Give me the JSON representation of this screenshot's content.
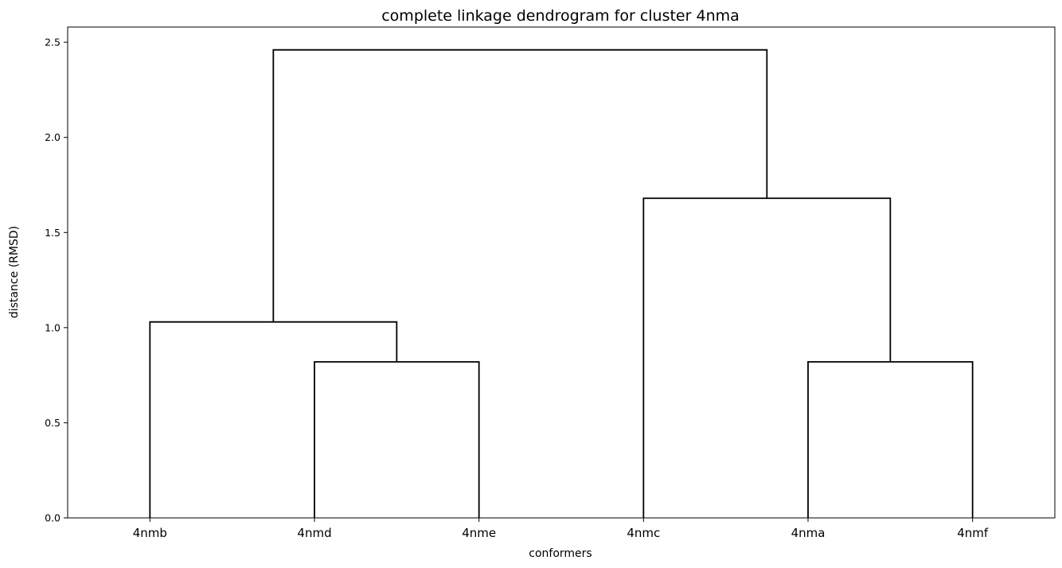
{
  "chart_data": {
    "type": "dendrogram",
    "title": "complete linkage dendrogram for cluster 4nma",
    "xlabel": "conformers",
    "ylabel": "distance (RMSD)",
    "leaves": [
      "4nmb",
      "4nmd",
      "4nme",
      "4nmc",
      "4nma",
      "4nmf"
    ],
    "yticks": [
      0.0,
      0.5,
      1.0,
      1.5,
      2.0,
      2.5
    ],
    "ytick_labels": [
      "0.0",
      "0.5",
      "1.0",
      "1.5",
      "2.0",
      "2.5"
    ],
    "ylim": [
      0,
      2.58
    ],
    "merges": [
      {
        "left": "4nmd",
        "right": "4nme",
        "height": 0.82
      },
      {
        "left": "4nma",
        "right": "4nmf",
        "height": 0.82
      },
      {
        "left": "4nmb",
        "right": "4nmd+4nme",
        "height": 1.03
      },
      {
        "left": "4nmc",
        "right": "4nma+4nmf",
        "height": 1.68
      },
      {
        "left": "4nmb+4nmd+4nme",
        "right": "4nmc+4nma+4nmf",
        "height": 2.46
      }
    ],
    "line_color": "#000000",
    "grid": false
  }
}
